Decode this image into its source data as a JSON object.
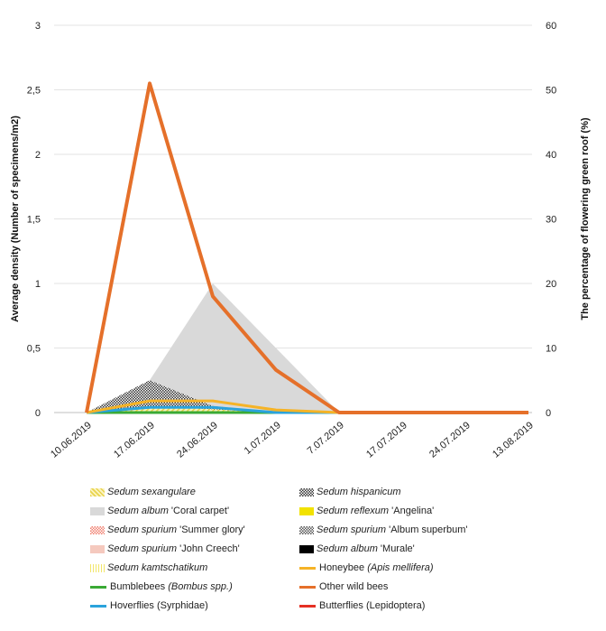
{
  "chart_data": {
    "type": "area",
    "categories": [
      "10.06.2019",
      "17.06.2019",
      "24.06.2019",
      "1.07.2019",
      "7.07.2019",
      "17.07.2019",
      "24.07.2019",
      "13.08.2019"
    ],
    "ylabel": "Average density (Number of specimens/m2)",
    "y2label": "The percentage of flowering green roof (%)",
    "ylim": [
      0,
      3
    ],
    "y2lim": [
      0,
      60
    ],
    "yticks": [
      "0",
      "0,5",
      "1",
      "1,5",
      "2",
      "2,5",
      "3"
    ],
    "y2ticks": [
      "0",
      "10",
      "20",
      "30",
      "40",
      "50",
      "60"
    ],
    "grid": true,
    "legend_position": "bottom",
    "area_series": [
      {
        "name": "Sedum album 'Coral carpet'",
        "axis": "right",
        "color": "#d9d9d9",
        "pattern": "solid",
        "values": [
          0,
          5,
          20,
          10,
          0,
          0,
          0,
          0
        ]
      },
      {
        "name": "Sedum hispanicum",
        "axis": "right",
        "color": "#333333",
        "pattern": "checker",
        "values": [
          0,
          5,
          1,
          0,
          0,
          0,
          0,
          0
        ]
      },
      {
        "name": "Sedum sexangulare",
        "axis": "right",
        "color": "#e8d44d",
        "pattern": "diagonal",
        "values": [
          0,
          1,
          0.5,
          0,
          0,
          0,
          0,
          0
        ]
      },
      {
        "name": "Sedum reflexum 'Angelina'",
        "axis": "right",
        "color": "#f2e200",
        "pattern": "solid",
        "values": [
          0,
          0,
          0,
          0,
          0,
          0,
          0,
          0
        ]
      },
      {
        "name": "Sedum spurium 'Summer glory'",
        "axis": "right",
        "color": "#f08070",
        "pattern": "checker",
        "values": [
          0,
          0,
          0,
          0,
          0,
          0,
          0,
          0
        ]
      },
      {
        "name": "Sedum spurium 'Album superbum'",
        "axis": "right",
        "color": "#555555",
        "pattern": "checker",
        "values": [
          0,
          0,
          0,
          0,
          0,
          0,
          0,
          0
        ]
      },
      {
        "name": "Sedum spurium 'John Creech'",
        "axis": "right",
        "color": "#f5c9be",
        "pattern": "solid",
        "values": [
          0,
          0,
          0,
          0,
          0,
          0,
          0,
          0
        ]
      },
      {
        "name": "Sedum album 'Murale'",
        "axis": "right",
        "color": "#000000",
        "pattern": "solid",
        "values": [
          0,
          0,
          0,
          0,
          0,
          0,
          0,
          0
        ]
      },
      {
        "name": "Sedum kamtschatikum",
        "axis": "right",
        "color": "#f2e66a",
        "pattern": "vertical",
        "values": [
          0,
          0,
          0,
          0,
          0,
          0,
          0,
          0
        ]
      }
    ],
    "line_series": [
      {
        "name": "Other wild bees",
        "axis": "left",
        "color": "#e5702a",
        "width": 4,
        "values": [
          0,
          2.55,
          0.9,
          0.33,
          0,
          0,
          0,
          0
        ]
      },
      {
        "name": "Honeybee (Apis mellifera)",
        "axis": "left",
        "color": "#f5b326",
        "width": 3,
        "values": [
          0,
          0.09,
          0.09,
          0.02,
          0,
          0,
          0,
          0
        ]
      },
      {
        "name": "Hoverflies (Syrphidae)",
        "axis": "left",
        "color": "#2aa3dc",
        "width": 3,
        "values": [
          0,
          0.04,
          0.04,
          0,
          0,
          0,
          0,
          0
        ]
      },
      {
        "name": "Bumblebees (Bombus spp.)",
        "axis": "left",
        "color": "#3aaa35",
        "width": 3,
        "values": [
          0,
          0,
          0,
          0,
          0,
          0,
          0,
          0
        ]
      },
      {
        "name": "Butterflies (Lepidoptera)",
        "axis": "left",
        "color": "#e53024",
        "width": 3,
        "values": [
          0,
          0,
          0,
          0,
          0,
          0,
          0,
          0
        ]
      }
    ]
  },
  "legend": [
    {
      "italic": "Sedum sexangulare",
      "plain": "",
      "kind": "diagonal",
      "color": "#e8d44d"
    },
    {
      "italic": "Sedum hispanicum",
      "plain": "",
      "kind": "checker",
      "color": "#333333"
    },
    {
      "italic": "Sedum album",
      "plain": " 'Coral carpet'",
      "kind": "solid",
      "color": "#d9d9d9"
    },
    {
      "italic": "Sedum reflexum",
      "plain": " 'Angelina'",
      "kind": "solid",
      "color": "#f2e200"
    },
    {
      "italic": "Sedum spurium",
      "plain": " 'Summer glory'",
      "kind": "checker",
      "color": "#f08070"
    },
    {
      "italic": "Sedum spurium",
      "plain": " 'Album superbum'",
      "kind": "checker",
      "color": "#555555"
    },
    {
      "italic": "Sedum spurium",
      "plain": " 'John Creech'",
      "kind": "solid",
      "color": "#f5c9be"
    },
    {
      "italic": "Sedum album",
      "plain": " 'Murale'",
      "kind": "solid",
      "color": "#000000"
    },
    {
      "italic": "Sedum kamtschatikum",
      "plain": "",
      "kind": "vertical",
      "color": "#f2e66a"
    },
    {
      "italic": "",
      "plain": "Honeybee ",
      "italic2": "(Apis mellifera)",
      "kind": "line",
      "color": "#f5b326"
    },
    {
      "italic": "",
      "plain": "Bumblebees ",
      "italic2": "(Bombus spp.)",
      "kind": "line",
      "color": "#3aaa35"
    },
    {
      "italic": "",
      "plain": "Other wild bees",
      "italic2": "",
      "kind": "line",
      "color": "#e5702a"
    },
    {
      "italic": "",
      "plain": "Hoverflies (Syrphidae)",
      "italic2": "",
      "kind": "line",
      "color": "#2aa3dc"
    },
    {
      "italic": "",
      "plain": "Butterflies (Lepidoptera)",
      "italic2": "",
      "kind": "line",
      "color": "#e53024"
    }
  ]
}
